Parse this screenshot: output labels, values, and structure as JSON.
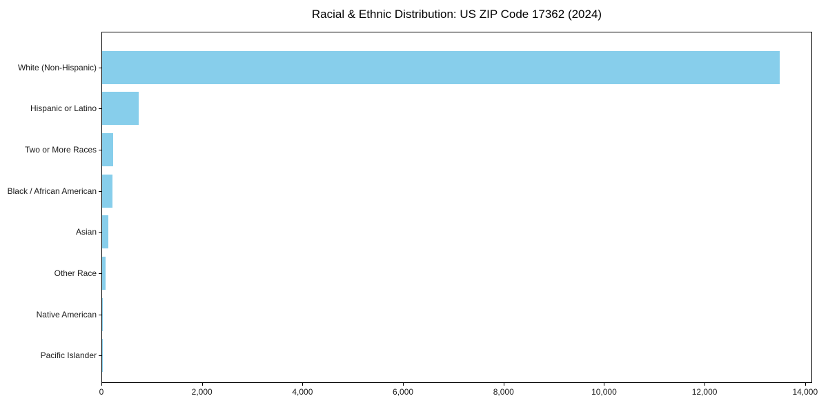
{
  "chart_data": {
    "type": "bar",
    "orientation": "horizontal",
    "title": "Racial & Ethnic Distribution: US ZIP Code 17362 (2024)",
    "categories": [
      "White (Non-Hispanic)",
      "Hispanic or Latino",
      "Two or More Races",
      "Black / African American",
      "Asian",
      "Other Race",
      "Native American",
      "Pacific Islander"
    ],
    "values": [
      13475,
      725,
      225,
      200,
      125,
      70,
      12,
      2
    ],
    "bar_color": "#87CEEB",
    "xlim": [
      0,
      14140
    ],
    "x_ticks": [
      0,
      2000,
      4000,
      6000,
      8000,
      10000,
      12000,
      14000
    ],
    "x_tick_labels": [
      "0",
      "2,000",
      "4,000",
      "6,000",
      "8,000",
      "10,000",
      "12,000",
      "14,000"
    ],
    "xlabel": "",
    "ylabel": "",
    "grid": false,
    "legend": null
  }
}
